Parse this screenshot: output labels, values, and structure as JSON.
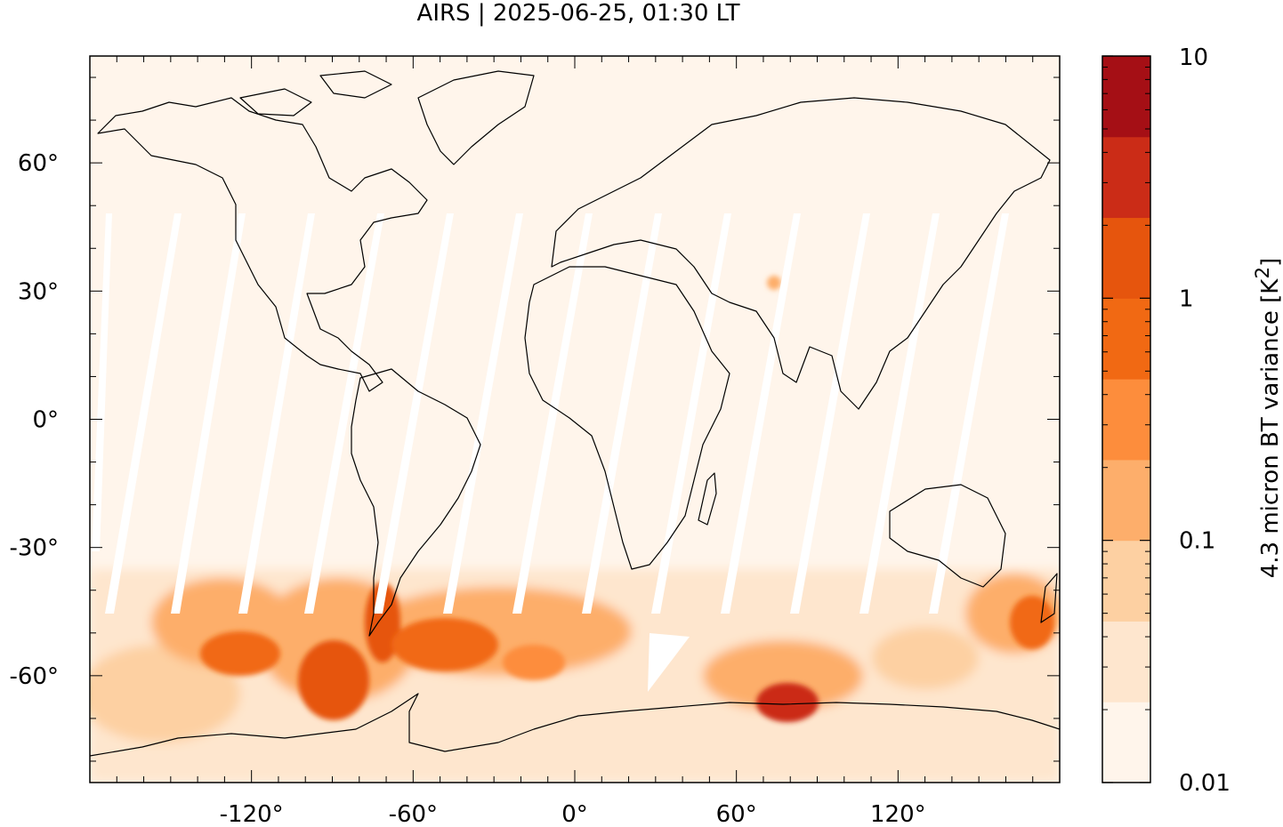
{
  "title": "AIRS | 2025-06-25, 01:30 LT",
  "map": {
    "projection": "equirectangular",
    "lon_range": [
      -180,
      180
    ],
    "lat_range": [
      -85,
      85
    ],
    "lon_ticks": [
      {
        "value": -120,
        "label": "-120°"
      },
      {
        "value": -60,
        "label": "-60°"
      },
      {
        "value": 0,
        "label": "0°"
      },
      {
        "value": 60,
        "label": "60°"
      },
      {
        "value": 120,
        "label": "120°"
      }
    ],
    "lat_ticks": [
      {
        "value": 60,
        "label": "60°"
      },
      {
        "value": 30,
        "label": "30°"
      },
      {
        "value": 0,
        "label": "0°"
      },
      {
        "value": -30,
        "label": "-30°"
      },
      {
        "value": -60,
        "label": "-60°"
      }
    ],
    "background_color": "#fff5eb",
    "coastlines": "black"
  },
  "colorbar": {
    "label": "4.3 micron BT variance [K",
    "label_sup": "2",
    "label_end": "]",
    "scale": "log",
    "range": [
      0.01,
      10
    ],
    "tick_labels": [
      {
        "value": 10,
        "label": "10"
      },
      {
        "value": 1,
        "label": "1"
      },
      {
        "value": 0.1,
        "label": "0.1"
      },
      {
        "value": 0.01,
        "label": "0.01"
      }
    ],
    "colors_bottom_to_top": [
      "#fff5eb",
      "#fee6ce",
      "#fdd0a2",
      "#fdae6b",
      "#fd8d3c",
      "#f16913",
      "#e6550d",
      "#cb2c17",
      "#a50f15"
    ]
  }
}
